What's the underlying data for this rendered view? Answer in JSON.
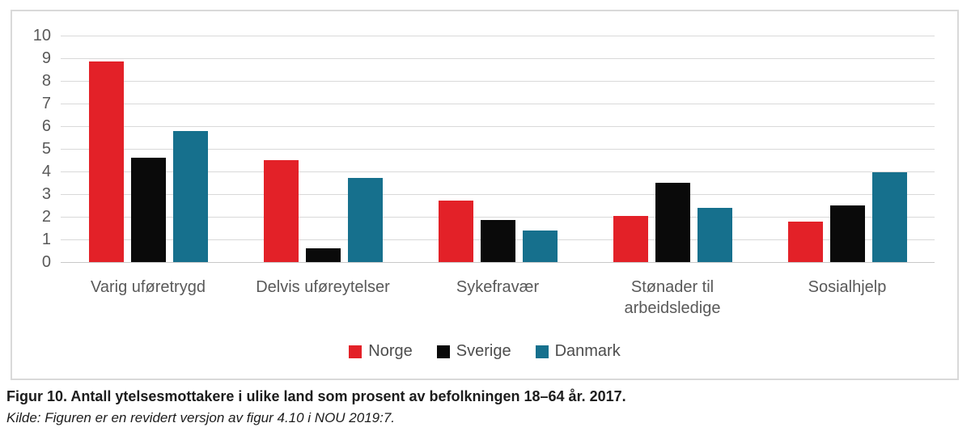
{
  "caption": {
    "title": "Figur 10. Antall ytelsesmottakere i ulike land som prosent av befolkningen 18–64 år. 2017.",
    "source": "Kilde: Figuren er en revidert versjon av figur 4.10 i NOU 2019:7."
  },
  "colors": {
    "norge_red": "#e32128",
    "sverige_black": "#0a0a0a",
    "danmark_teal": "#16708d",
    "gridline": "#d9d9d9",
    "frame_border": "#d9d9d9",
    "axis_text": "#595959"
  },
  "chart_data": {
    "type": "bar",
    "title": "",
    "xlabel": "",
    "ylabel": "",
    "categories": [
      "Varig uføretrygd",
      "Delvis uføreytelser",
      "Sykefravær",
      "Stønader til\narbeidsledige",
      "Sosialhjelp"
    ],
    "series": [
      {
        "name": "Norge",
        "color": "#e32128",
        "values": [
          8.85,
          4.5,
          2.7,
          2.05,
          1.8
        ]
      },
      {
        "name": "Sverige",
        "color": "#0a0a0a",
        "values": [
          4.6,
          0.6,
          1.85,
          3.5,
          2.5
        ]
      },
      {
        "name": "Danmark",
        "color": "#16708d",
        "values": [
          5.8,
          3.7,
          1.4,
          2.4,
          3.95
        ]
      }
    ],
    "ylim": [
      0,
      10
    ],
    "yticks": [
      0,
      1,
      2,
      3,
      4,
      5,
      6,
      7,
      8,
      9,
      10
    ],
    "grid": true,
    "legend_position": "bottom"
  }
}
